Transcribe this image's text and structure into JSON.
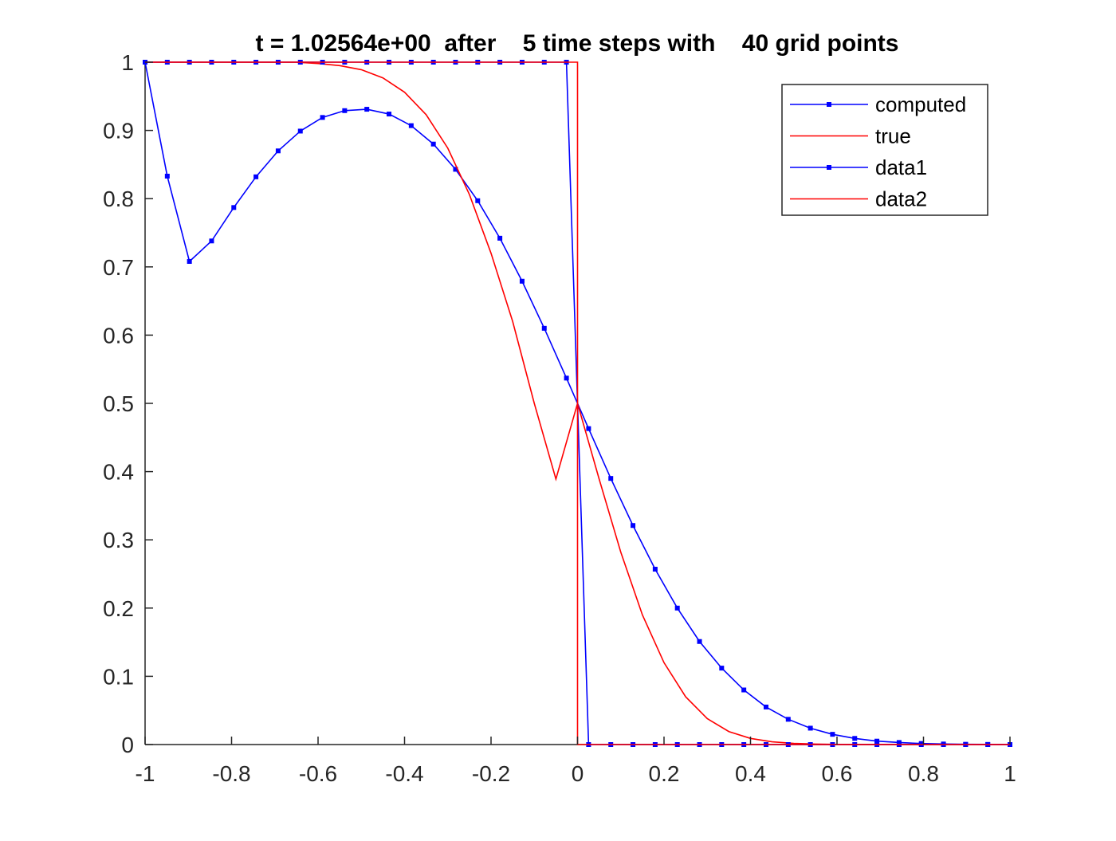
{
  "chart_data": {
    "type": "line",
    "title": "t = 1.02564e+00  after    5 time steps with    40 grid points",
    "xlabel": "",
    "ylabel": "",
    "xlim": [
      -1,
      1
    ],
    "ylim": [
      0,
      1
    ],
    "grid": false,
    "legend_position": "top-right",
    "xticks": [
      -1,
      -0.8,
      -0.6,
      -0.4,
      -0.2,
      0,
      0.2,
      0.4,
      0.6,
      0.8,
      1
    ],
    "xtick_labels": [
      "-1",
      "-0.8",
      "-0.6",
      "-0.4",
      "-0.2",
      "0",
      "0.2",
      "0.4",
      "0.6",
      "0.8",
      "1"
    ],
    "yticks": [
      0,
      0.1,
      0.2,
      0.3,
      0.4,
      0.5,
      0.6,
      0.7,
      0.8,
      0.9,
      1
    ],
    "ytick_labels": [
      "0",
      "0.1",
      "0.2",
      "0.3",
      "0.4",
      "0.5",
      "0.6",
      "0.7",
      "0.8",
      "0.9",
      "1"
    ],
    "series": [
      {
        "name": "computed",
        "color": "#0000ff",
        "marker": "square",
        "x": [
          -1,
          -0.9487,
          -0.8974,
          -0.8462,
          -0.7949,
          -0.7436,
          -0.6923,
          -0.641,
          -0.5897,
          -0.5385,
          -0.4872,
          -0.4359,
          -0.3846,
          -0.3333,
          -0.2821,
          -0.2308,
          -0.1795,
          -0.1282,
          -0.0769,
          -0.0256,
          0.0256,
          0.0769,
          0.1282,
          0.1795,
          0.2308,
          0.2821,
          0.3333,
          0.3846,
          0.4359,
          0.4872,
          0.5385,
          0.5897,
          0.641,
          0.6923,
          0.7436,
          0.7949,
          0.8462,
          0.8974,
          0.9487,
          1
        ],
        "y": [
          1,
          0.833,
          0.708,
          0.738,
          0.787,
          0.832,
          0.87,
          0.899,
          0.919,
          0.929,
          0.931,
          0.924,
          0.907,
          0.88,
          0.843,
          0.797,
          0.742,
          0.679,
          0.61,
          0.537,
          0.463,
          0.39,
          0.321,
          0.257,
          0.2,
          0.151,
          0.112,
          0.08,
          0.055,
          0.037,
          0.024,
          0.015,
          0.009,
          0.005,
          0.003,
          0.0015,
          0.0008,
          0.0004,
          0.0002,
          0
        ]
      },
      {
        "name": "true",
        "color": "#ff0000",
        "marker": "none",
        "x": [
          -1,
          -0.95,
          -0.9,
          -0.85,
          -0.8,
          -0.75,
          -0.7,
          -0.65,
          -0.6,
          -0.55,
          -0.5,
          -0.45,
          -0.4,
          -0.35,
          -0.3,
          -0.25,
          -0.2,
          -0.15,
          -0.1,
          -0.05,
          0,
          0.05,
          0.1,
          0.15,
          0.2,
          0.25,
          0.3,
          0.35,
          0.4,
          0.45,
          0.5,
          0.55,
          0.6,
          0.65,
          0.7,
          0.75,
          0.8,
          0.85,
          0.9,
          0.95,
          1
        ],
        "y": [
          1,
          1,
          1,
          1,
          1,
          1,
          1,
          1,
          0.998,
          0.995,
          0.989,
          0.977,
          0.956,
          0.923,
          0.874,
          0.806,
          0.72,
          0.62,
          0.5,
          0.389,
          0.5,
          0.389,
          0.282,
          0.19,
          0.12,
          0.07,
          0.038,
          0.019,
          0.009,
          0.004,
          0.0017,
          0.0007,
          0.0003,
          0.0001,
          0,
          0,
          0,
          0,
          0,
          0,
          0
        ]
      },
      {
        "name": "data1",
        "color": "#0000ff",
        "marker": "square",
        "x": [
          -1,
          -0.9487,
          -0.8974,
          -0.8462,
          -0.7949,
          -0.7436,
          -0.6923,
          -0.641,
          -0.5897,
          -0.5385,
          -0.4872,
          -0.4359,
          -0.3846,
          -0.3333,
          -0.2821,
          -0.2308,
          -0.1795,
          -0.1282,
          -0.0769,
          -0.0256,
          0.0256,
          0.0769,
          0.1282,
          0.1795,
          0.2308,
          0.2821,
          0.3333,
          0.3846,
          0.4359,
          0.4872,
          0.5385,
          0.5897,
          0.641,
          0.6923,
          0.7436,
          0.7949,
          0.8462,
          0.8974,
          0.9487,
          1
        ],
        "y": [
          1,
          1,
          1,
          1,
          1,
          1,
          1,
          1,
          1,
          1,
          1,
          1,
          1,
          1,
          1,
          1,
          1,
          1,
          1,
          1,
          0,
          0,
          0,
          0,
          0,
          0,
          0,
          0,
          0,
          0,
          0,
          0,
          0,
          0,
          0,
          0,
          0,
          0,
          0,
          0
        ]
      },
      {
        "name": "data2",
        "color": "#ff0000",
        "marker": "none",
        "x": [
          -1,
          0,
          0,
          1
        ],
        "y": [
          1,
          1,
          0,
          0
        ]
      }
    ]
  }
}
